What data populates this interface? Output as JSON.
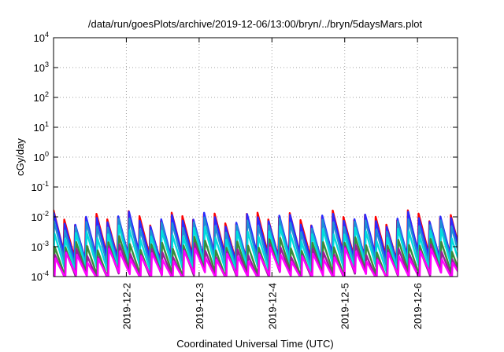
{
  "chart_data": {
    "type": "line",
    "title": "/data/run/goesPlots/archive/2019-12-06/13:00/bryn/../bryn/5daysMars.plot",
    "xlabel": "Coordinated Universal Time (UTC)",
    "ylabel": "cGy/day",
    "x_range_days": [
      1.0,
      6.55
    ],
    "x_ticks": [
      {
        "x": 2,
        "label": "2019-12-2"
      },
      {
        "x": 3,
        "label": "2019-12-3"
      },
      {
        "x": 4,
        "label": "2019-12-4"
      },
      {
        "x": 5,
        "label": "2019-12-5"
      },
      {
        "x": 6,
        "label": "2019-12-6"
      }
    ],
    "y_scale": "log",
    "ylim": [
      0.0001,
      10000
    ],
    "y_ticks": [
      {
        "exp": 4,
        "mantissa": "10",
        "power": "4"
      },
      {
        "exp": 3,
        "mantissa": "10",
        "power": "3"
      },
      {
        "exp": 2,
        "mantissa": "10",
        "power": "2"
      },
      {
        "exp": 1,
        "mantissa": "10",
        "power": "1"
      },
      {
        "exp": 0,
        "mantissa": "10",
        "power": "0"
      },
      {
        "exp": -1,
        "mantissa": "10",
        "power": "-1"
      },
      {
        "exp": -2,
        "mantissa": "10",
        "power": "-2"
      },
      {
        "exp": -3,
        "mantissa": "10",
        "power": "-3"
      },
      {
        "exp": -4,
        "mantissa": "10",
        "power": "-4"
      }
    ],
    "grid": true,
    "sawtooth_period_days": 0.1475,
    "series": [
      {
        "color": "#ff0000",
        "peak": 0.0095,
        "trough": 0.0005,
        "offset_days": 0.0
      },
      {
        "color": "#2a2aff",
        "peak": 0.0085,
        "trough": 0.00045,
        "offset_days": 0.004
      },
      {
        "color": "#1e8fd6",
        "peak": 0.0055,
        "trough": 0.0003,
        "offset_days": 0.008
      },
      {
        "color": "#00dddd",
        "peak": 0.0028,
        "trough": 0.0002,
        "offset_days": 0.012
      },
      {
        "color": "#3a8a3a",
        "peak": 0.0012,
        "trough": 0.00012,
        "offset_days": 0.016
      },
      {
        "color": "#9b1b9b",
        "peak": 0.0007,
        "trough": 0.0001,
        "offset_days": 0.02
      },
      {
        "color": "#ff00ff",
        "peak": 0.0005,
        "trough": 0.0001,
        "offset_days": 0.024
      }
    ]
  }
}
